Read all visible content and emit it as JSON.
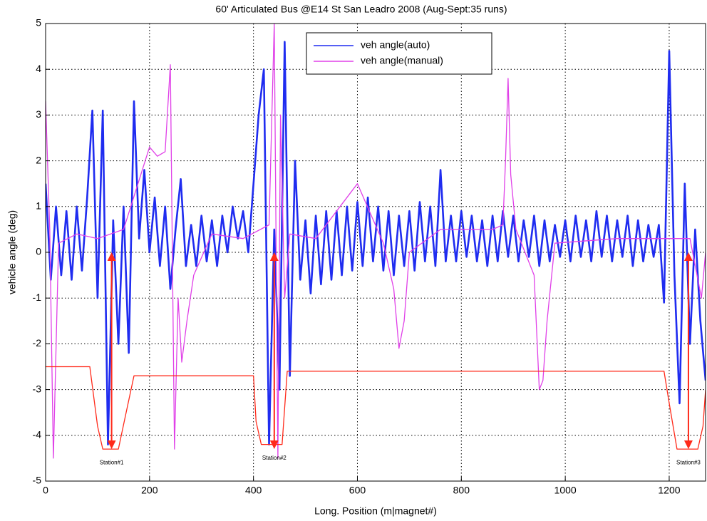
{
  "chart_data": {
    "type": "line",
    "title": "60' Articulated Bus @E14 St San Leadro 2008 (Aug-Sept:35 runs)",
    "xlabel": "Long. Position (m|magnet#)",
    "ylabel": "vehicle angle (deg)",
    "xlim": [
      0,
      1270
    ],
    "ylim": [
      -5,
      5
    ],
    "xticks": [
      0,
      200,
      400,
      600,
      800,
      1000,
      1200
    ],
    "yticks": [
      -5,
      -4,
      -3,
      -2,
      -1,
      0,
      1,
      2,
      3,
      4,
      5
    ],
    "grid": true,
    "legend": "top",
    "series": [
      {
        "name": "veh angle(auto)",
        "color": "#1f2cf0",
        "x": [
          0,
          10,
          20,
          30,
          40,
          50,
          60,
          70,
          80,
          90,
          100,
          110,
          120,
          130,
          140,
          150,
          160,
          170,
          180,
          190,
          200,
          210,
          220,
          230,
          240,
          250,
          260,
          270,
          280,
          290,
          300,
          310,
          320,
          330,
          340,
          350,
          360,
          370,
          380,
          390,
          400,
          410,
          420,
          430,
          440,
          450,
          460,
          470,
          480,
          490,
          500,
          510,
          520,
          530,
          540,
          550,
          560,
          570,
          580,
          590,
          600,
          610,
          620,
          630,
          640,
          650,
          660,
          670,
          680,
          690,
          700,
          710,
          720,
          730,
          740,
          750,
          760,
          770,
          780,
          790,
          800,
          810,
          820,
          830,
          840,
          850,
          860,
          870,
          880,
          890,
          900,
          910,
          920,
          930,
          940,
          950,
          960,
          970,
          980,
          990,
          1000,
          1010,
          1020,
          1030,
          1040,
          1050,
          1060,
          1070,
          1080,
          1090,
          1100,
          1110,
          1120,
          1130,
          1140,
          1150,
          1160,
          1170,
          1180,
          1190,
          1200,
          1210,
          1220,
          1230,
          1240,
          1250,
          1260,
          1270
        ],
        "values": [
          1.5,
          -0.6,
          1.0,
          -0.5,
          0.9,
          -0.6,
          1.0,
          -0.4,
          1.2,
          3.1,
          -1.0,
          3.1,
          -4.2,
          0.7,
          -2.0,
          1.0,
          -2.2,
          3.3,
          0.3,
          1.8,
          0.0,
          1.2,
          -0.3,
          1.0,
          -0.8,
          0.5,
          1.6,
          -0.3,
          0.6,
          -0.3,
          0.8,
          -0.2,
          0.7,
          -0.3,
          0.8,
          0.0,
          1.0,
          0.3,
          0.9,
          0.0,
          1.5,
          3.0,
          4.0,
          -4.2,
          0.5,
          -3.0,
          4.6,
          -2.7,
          2.0,
          -0.6,
          0.7,
          -0.9,
          0.8,
          -0.7,
          0.9,
          -0.6,
          0.9,
          -0.5,
          1.0,
          -0.4,
          1.1,
          -0.3,
          1.2,
          -0.2,
          1.0,
          -0.4,
          0.9,
          -0.5,
          0.8,
          -0.3,
          0.9,
          -0.4,
          1.1,
          -0.2,
          1.0,
          -0.3,
          1.8,
          -0.2,
          0.8,
          -0.2,
          0.9,
          -0.1,
          0.8,
          -0.2,
          0.7,
          -0.3,
          0.8,
          -0.2,
          0.9,
          -0.1,
          0.8,
          -0.2,
          0.7,
          -0.1,
          0.8,
          -0.3,
          0.7,
          -0.2,
          0.6,
          -0.1,
          0.7,
          -0.2,
          0.8,
          -0.1,
          0.7,
          -0.2,
          0.9,
          -0.1,
          0.8,
          -0.2,
          0.7,
          -0.1,
          0.8,
          -0.3,
          0.7,
          -0.2,
          0.6,
          -0.1,
          0.6,
          -1.1,
          4.4,
          -0.5,
          -3.3,
          1.5,
          -2.0,
          0.5,
          -1.5,
          -2.8
        ]
      },
      {
        "name": "veh angle(manual)",
        "color": "#e040e8",
        "x": [
          0,
          8,
          15,
          25,
          60,
          100,
          150,
          200,
          215,
          230,
          240,
          248,
          255,
          262,
          272,
          285,
          320,
          380,
          430,
          440,
          447,
          452,
          460,
          470,
          520,
          600,
          650,
          670,
          680,
          690,
          700,
          760,
          860,
          880,
          885,
          890,
          895,
          905,
          940,
          950,
          957,
          965,
          980,
          1100,
          1240,
          1262,
          1270
        ],
        "values": [
          3.3,
          0.5,
          -4.5,
          0.2,
          0.4,
          0.3,
          0.5,
          2.3,
          2.1,
          2.2,
          4.1,
          -4.3,
          -1.0,
          -2.4,
          -1.5,
          -0.5,
          0.4,
          0.3,
          0.6,
          5.0,
          -4.5,
          3.0,
          -1.0,
          0.4,
          0.3,
          1.5,
          0.2,
          -0.8,
          -2.1,
          -1.5,
          0.0,
          0.5,
          0.5,
          0.6,
          2.0,
          3.8,
          1.7,
          0.5,
          -0.5,
          -3.0,
          -2.8,
          -1.5,
          0.2,
          0.3,
          0.3,
          -1.0,
          0.0
        ]
      },
      {
        "color": "#ff2a1a",
        "x": [
          0,
          85,
          100,
          110,
          140,
          155,
          170,
          400,
          405,
          415,
          455,
          465,
          1190,
          1200,
          1215,
          1255,
          1265,
          1270
        ],
        "values": [
          -2.5,
          -2.5,
          -3.8,
          -4.3,
          -4.3,
          -3.5,
          -2.7,
          -2.7,
          -3.7,
          -4.2,
          -4.2,
          -2.6,
          -2.6,
          -3.3,
          -4.3,
          -4.3,
          -3.8,
          -3.0
        ]
      }
    ],
    "arrow_y": [
      -4.3,
      0
    ],
    "annotations": [
      {
        "text": "Station#1",
        "x": 127,
        "y": -4.6
      },
      {
        "text": "Station#2",
        "x": 440,
        "y": -4.5
      },
      {
        "text": "Station#3",
        "x": 1237,
        "y": -4.6
      }
    ]
  }
}
